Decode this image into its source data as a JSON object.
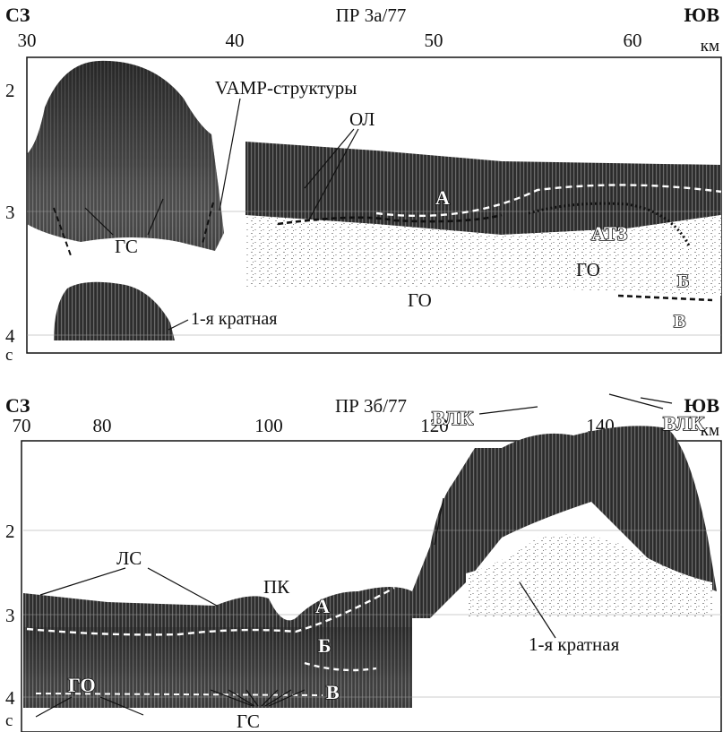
{
  "panels": [
    {
      "left_label": "СЗ",
      "title": "ПР 3а/77",
      "right_label": "ЮВ",
      "unit_km": "км",
      "x_ticks": [
        "30",
        "40",
        "50",
        "60"
      ],
      "y_ticks": [
        "2",
        "3",
        "4"
      ],
      "unit_s": "с",
      "labels": {
        "vamp": "VAMP-структуры",
        "ol": "ОЛ",
        "gs": "ГС",
        "a": "А",
        "atz": "АТЗ",
        "go1": "ГО",
        "go2": "ГО",
        "b": "Б",
        "v": "В",
        "multiple": "1-я кратная"
      }
    },
    {
      "left_label": "СЗ",
      "title": "ПР 3б/77",
      "right_label": "ЮВ",
      "unit_km": "км",
      "x_ticks": [
        "70",
        "80",
        "100",
        "120",
        "140"
      ],
      "y_ticks": [
        "2",
        "3",
        "4"
      ],
      "unit_s": "с",
      "labels": {
        "vlk1": "ВЛК",
        "vlk2": "ВЛК",
        "ls": "ЛС",
        "pk": "ПК",
        "a": "А",
        "b": "Б",
        "v": "В",
        "go": "ГО",
        "gs": "ГС",
        "multiple": "1-я кратная"
      }
    }
  ],
  "colors": {
    "ink": "#111111",
    "seismic_dark": "#2a2a2a",
    "seismic_mid": "#6e6e6e",
    "dashed_white": "#ffffff"
  }
}
